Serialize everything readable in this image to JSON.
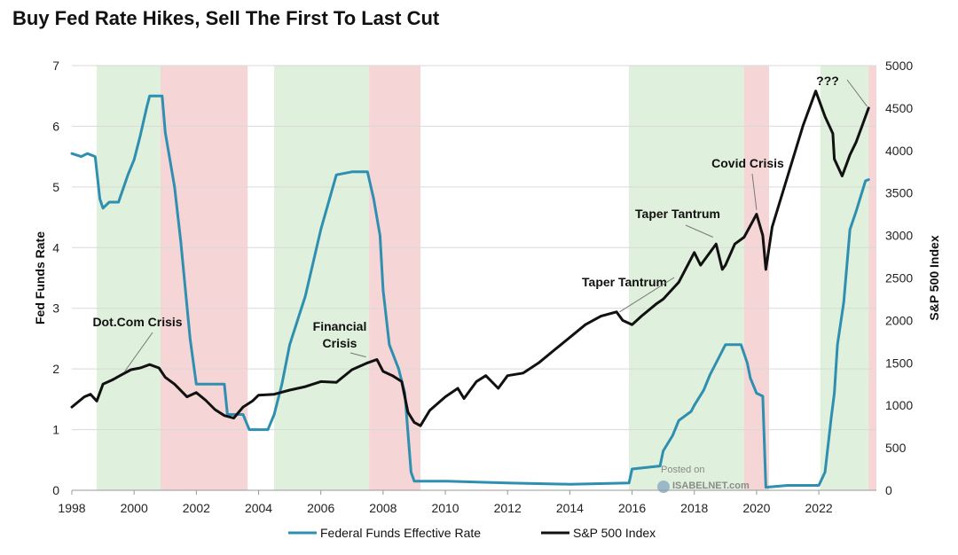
{
  "chart_data": {
    "type": "line",
    "title": "Buy Fed Rate Hikes, Sell The First To Last Cut",
    "xlabel": "",
    "ylabel_left": "Fed Funds Rate",
    "ylabel_right": "S&P 500 Index",
    "xlim": [
      1998,
      2023.85
    ],
    "ylim_left": [
      0,
      7
    ],
    "ylim_right": [
      0,
      5000
    ],
    "x_ticks": [
      "1998",
      "2000",
      "2002",
      "2004",
      "2006",
      "2008",
      "2010",
      "2012",
      "2014",
      "2016",
      "2018",
      "2020",
      "2022"
    ],
    "y_left_ticks": [
      "0",
      "1",
      "2",
      "3",
      "4",
      "5",
      "6",
      "7"
    ],
    "y_right_ticks": [
      "0",
      "500",
      "1000",
      "1500",
      "2000",
      "2500",
      "3000",
      "3500",
      "4000",
      "4500",
      "5000"
    ],
    "grid": true,
    "legend_position": "bottom-center",
    "bands": [
      {
        "kind": "hike",
        "start": 1998.8,
        "end": 2000.85
      },
      {
        "kind": "cut",
        "start": 2000.85,
        "end": 2003.65
      },
      {
        "kind": "hike",
        "start": 2004.5,
        "end": 2007.55
      },
      {
        "kind": "cut",
        "start": 2007.55,
        "end": 2009.2
      },
      {
        "kind": "hike",
        "start": 2015.9,
        "end": 2019.6
      },
      {
        "kind": "cut",
        "start": 2019.6,
        "end": 2020.4
      },
      {
        "kind": "hike",
        "start": 2022.05,
        "end": 2023.6
      },
      {
        "kind": "cut",
        "start": 2023.6,
        "end": 2023.85
      }
    ],
    "band_colors": {
      "hike": "#dff0dc",
      "cut": "#f5d5d5"
    },
    "series": [
      {
        "name": "Federal Funds Effective Rate",
        "axis": "left",
        "color": "#2e8fb0",
        "x": [
          1998.0,
          1998.3,
          1998.5,
          1998.75,
          1998.9,
          1999.0,
          1999.2,
          1999.5,
          1999.8,
          2000.0,
          2000.2,
          2000.4,
          2000.5,
          2000.9,
          2001.0,
          2001.3,
          2001.5,
          2001.8,
          2002.0,
          2002.5,
          2002.9,
          2003.0,
          2003.5,
          2003.7,
          2004.3,
          2004.5,
          2004.75,
          2005.0,
          2005.5,
          2006.0,
          2006.5,
          2007.0,
          2007.5,
          2007.7,
          2007.9,
          2008.0,
          2008.2,
          2008.5,
          2008.7,
          2008.9,
          2009.0,
          2010.0,
          2012.0,
          2014.0,
          2015.9,
          2016.0,
          2016.9,
          2017.0,
          2017.3,
          2017.5,
          2017.9,
          2018.0,
          2018.3,
          2018.5,
          2018.8,
          2019.0,
          2019.5,
          2019.7,
          2019.8,
          2020.0,
          2020.2,
          2020.3,
          2021.0,
          2022.0,
          2022.2,
          2022.4,
          2022.5,
          2022.6,
          2022.8,
          2023.0,
          2023.2,
          2023.5,
          2023.6
        ],
        "y": [
          5.55,
          5.5,
          5.55,
          5.5,
          4.8,
          4.65,
          4.75,
          4.75,
          5.2,
          5.45,
          5.85,
          6.3,
          6.5,
          6.5,
          5.9,
          5.0,
          4.1,
          2.5,
          1.75,
          1.75,
          1.75,
          1.25,
          1.25,
          1.0,
          1.0,
          1.25,
          1.75,
          2.4,
          3.2,
          4.3,
          5.2,
          5.25,
          5.25,
          4.8,
          4.2,
          3.3,
          2.4,
          2.0,
          1.6,
          0.3,
          0.15,
          0.15,
          0.12,
          0.1,
          0.12,
          0.35,
          0.4,
          0.65,
          0.9,
          1.15,
          1.3,
          1.4,
          1.65,
          1.9,
          2.2,
          2.4,
          2.4,
          2.1,
          1.85,
          1.6,
          1.55,
          0.05,
          0.08,
          0.08,
          0.3,
          1.2,
          1.6,
          2.4,
          3.1,
          4.3,
          4.6,
          5.1,
          5.12
        ]
      },
      {
        "name": "S&P 500 Index",
        "axis": "right",
        "color": "#111111",
        "x": [
          1998.0,
          1998.4,
          1998.6,
          1998.8,
          1999.0,
          1999.3,
          1999.6,
          1999.9,
          2000.2,
          2000.5,
          2000.8,
          2001.0,
          2001.3,
          2001.7,
          2002.0,
          2002.3,
          2002.6,
          2002.9,
          2003.2,
          2003.5,
          2003.8,
          2004.0,
          2004.5,
          2005.0,
          2005.5,
          2006.0,
          2006.5,
          2007.0,
          2007.5,
          2007.8,
          2008.0,
          2008.3,
          2008.6,
          2008.8,
          2009.0,
          2009.2,
          2009.5,
          2010.0,
          2010.4,
          2010.6,
          2011.0,
          2011.3,
          2011.7,
          2012.0,
          2012.5,
          2013.0,
          2013.5,
          2014.0,
          2014.5,
          2015.0,
          2015.5,
          2015.7,
          2016.0,
          2016.3,
          2016.8,
          2017.0,
          2017.5,
          2018.0,
          2018.2,
          2018.7,
          2018.9,
          2019.0,
          2019.3,
          2019.6,
          2020.0,
          2020.2,
          2020.3,
          2020.5,
          2021.0,
          2021.5,
          2021.9,
          2022.0,
          2022.2,
          2022.45,
          2022.5,
          2022.75,
          2022.9,
          2023.0,
          2023.2,
          2023.4,
          2023.6
        ],
        "y": [
          980,
          1100,
          1130,
          1050,
          1250,
          1300,
          1360,
          1420,
          1440,
          1480,
          1440,
          1330,
          1250,
          1100,
          1150,
          1060,
          950,
          880,
          850,
          980,
          1050,
          1120,
          1130,
          1180,
          1220,
          1280,
          1270,
          1420,
          1500,
          1540,
          1400,
          1350,
          1280,
          920,
          800,
          760,
          940,
          1100,
          1200,
          1080,
          1280,
          1350,
          1200,
          1350,
          1380,
          1500,
          1650,
          1800,
          1950,
          2050,
          2100,
          2000,
          1950,
          2050,
          2200,
          2250,
          2450,
          2800,
          2650,
          2900,
          2600,
          2650,
          2900,
          2980,
          3250,
          3000,
          2600,
          3100,
          3700,
          4300,
          4700,
          4600,
          4400,
          4200,
          3900,
          3700,
          3850,
          3950,
          4100,
          4300,
          4500
        ]
      }
    ],
    "annotations": [
      {
        "text": "Dot.Com Crisis",
        "x": 1999.7,
        "y_right": 1400
      },
      {
        "text": "Financial",
        "x": 2007.45,
        "y_right": 1570
      },
      {
        "text": "Crisis",
        "x": 2007.45,
        "y_right": 1570
      },
      {
        "text": "Taper Tantrum",
        "x": 2015.6,
        "y_right": 2100
      },
      {
        "text": "Taper Tantrum",
        "x": 2018.6,
        "y_right": 2980
      },
      {
        "text": "Covid Crisis",
        "x": 2020.0,
        "y_right": 3300
      },
      {
        "text": "???",
        "x": 2023.55,
        "y_right": 4520
      }
    ],
    "watermark": {
      "line1": "Posted on",
      "line2": "ISABELNET.com"
    }
  }
}
